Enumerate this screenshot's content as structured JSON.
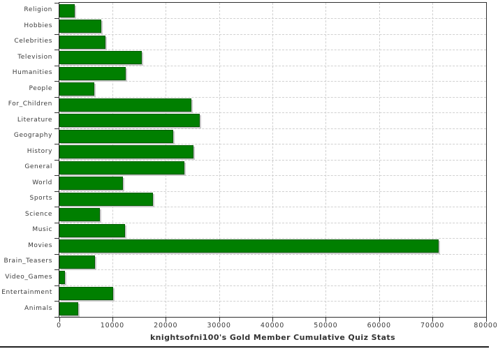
{
  "chart_data": {
    "type": "bar",
    "orientation": "horizontal",
    "title": "knightsofni100's Gold Member Cumulative Quiz Stats",
    "categories": [
      "Religion",
      "Hobbies",
      "Celebrities",
      "Television",
      "Humanities",
      "People",
      "For_Children",
      "Literature",
      "Geography",
      "History",
      "General",
      "World",
      "Sports",
      "Science",
      "Music",
      "Movies",
      "Brain_Teasers",
      "Video_Games",
      "Entertainment",
      "Animals"
    ],
    "values": [
      2850,
      7800,
      8600,
      15400,
      12400,
      6600,
      24800,
      26300,
      21300,
      25200,
      23400,
      11900,
      17600,
      7600,
      12300,
      71100,
      6700,
      1000,
      10100,
      3500
    ],
    "xlabel": "",
    "ylabel": "",
    "xlim": [
      0,
      80000
    ],
    "x_tick_step": 10000,
    "x_tick_labels": [
      "0",
      "10000",
      "20000",
      "30000",
      "40000",
      "50000",
      "60000",
      "70000",
      "80000"
    ],
    "grid": "dashed vertical lines every 10000; dashed horizontal lines between category rows",
    "legend": "none",
    "colors": {
      "bar_fill": "#007f00",
      "bar_border": "#005c00",
      "bar_shadow": "#c9c9c9",
      "gridline": "#d0d0d0",
      "axis": "#2e2e2e",
      "text": "#3a3a3a",
      "title_text": "#333333",
      "background": "#ffffff"
    }
  }
}
